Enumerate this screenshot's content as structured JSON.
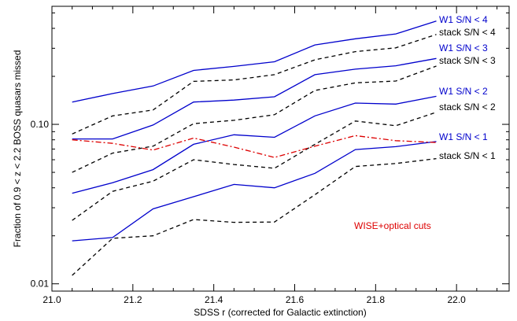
{
  "chart_data": {
    "type": "line",
    "title": "",
    "xlabel": "SDSS r (corrected for Galactic extinction)",
    "ylabel": "Fraction of 0.9 < z < 2.2 BOSS quasars missed",
    "xlim": [
      21.0,
      22.13
    ],
    "ylim": [
      0.009,
      0.55
    ],
    "yscale": "log",
    "grid": false,
    "x_ticks": [
      {
        "value": 21.0,
        "label": "21.0"
      },
      {
        "value": 21.2,
        "label": "21.2"
      },
      {
        "value": 21.4,
        "label": "21.4"
      },
      {
        "value": 21.6,
        "label": "21.6"
      },
      {
        "value": 21.8,
        "label": "21.8"
      },
      {
        "value": 22.0,
        "label": "22.0"
      }
    ],
    "y_ticks": [
      {
        "value": 0.01,
        "label": "0.01"
      },
      {
        "value": 0.1,
        "label": "0.10"
      }
    ],
    "x": [
      21.05,
      21.15,
      21.25,
      21.35,
      21.45,
      21.55,
      21.65,
      21.75,
      21.85,
      21.95
    ],
    "series": [
      {
        "name": "W1 S/N < 4",
        "style": "solid",
        "color": "#0000cc",
        "values": [
          0.138,
          0.156,
          0.174,
          0.218,
          0.231,
          0.247,
          0.315,
          0.344,
          0.369,
          0.444
        ]
      },
      {
        "name": "stack S/N < 4",
        "style": "dashed",
        "color": "#000000",
        "values": [
          0.087,
          0.113,
          0.123,
          0.186,
          0.19,
          0.205,
          0.254,
          0.286,
          0.302,
          0.366
        ]
      },
      {
        "name": "W1 S/N < 3",
        "style": "solid",
        "color": "#0000cc",
        "values": [
          0.081,
          0.081,
          0.099,
          0.138,
          0.142,
          0.149,
          0.205,
          0.222,
          0.233,
          0.259
        ]
      },
      {
        "name": "stack S/N < 3",
        "style": "dashed",
        "color": "#000000",
        "values": [
          0.05,
          0.066,
          0.073,
          0.101,
          0.106,
          0.115,
          0.163,
          0.182,
          0.187,
          0.232
        ]
      },
      {
        "name": "W1 S/N < 2",
        "style": "solid",
        "color": "#0000cc",
        "values": [
          0.037,
          0.043,
          0.052,
          0.075,
          0.086,
          0.083,
          0.113,
          0.136,
          0.134,
          0.15
        ]
      },
      {
        "name": "stack S/N < 2",
        "style": "dashed",
        "color": "#000000",
        "values": [
          0.025,
          0.038,
          0.044,
          0.06,
          0.056,
          0.053,
          0.075,
          0.105,
          0.098,
          0.119
        ]
      },
      {
        "name": "W1 S/N < 1",
        "style": "solid",
        "color": "#0000cc",
        "values": [
          0.0186,
          0.0195,
          0.0295,
          0.0352,
          0.042,
          0.04,
          0.0493,
          0.0695,
          0.0725,
          0.078
        ]
      },
      {
        "name": "stack S/N < 1",
        "style": "dashed",
        "color": "#000000",
        "values": [
          0.0113,
          0.0193,
          0.02,
          0.0253,
          0.0243,
          0.0244,
          0.0362,
          0.0544,
          0.0568,
          0.061
        ]
      },
      {
        "name": "WISE+optical cuts",
        "style": "dashdot",
        "color": "#dd0000",
        "values": [
          0.08,
          0.076,
          0.069,
          0.082,
          0.072,
          0.062,
          0.073,
          0.085,
          0.079,
          0.077
        ]
      }
    ],
    "annotations": [
      {
        "text": "W1 S/N < 4",
        "series": 0,
        "color": "#0000cc"
      },
      {
        "text": "stack S/N < 4",
        "series": 1,
        "color": "#000000"
      },
      {
        "text": "W1 S/N < 3",
        "series": 2,
        "color": "#0000cc"
      },
      {
        "text": "stack S/N < 3",
        "series": 3,
        "color": "#000000"
      },
      {
        "text": "W1 S/N < 2",
        "series": 4,
        "color": "#0000cc"
      },
      {
        "text": "stack S/N < 2",
        "series": 5,
        "color": "#000000"
      },
      {
        "text": "W1 S/N < 1",
        "series": 6,
        "color": "#0000cc"
      },
      {
        "text": "stack S/N < 1",
        "series": 7,
        "color": "#000000"
      },
      {
        "text": "WISE+optical cuts",
        "series": 8,
        "color": "#dd0000"
      }
    ]
  }
}
